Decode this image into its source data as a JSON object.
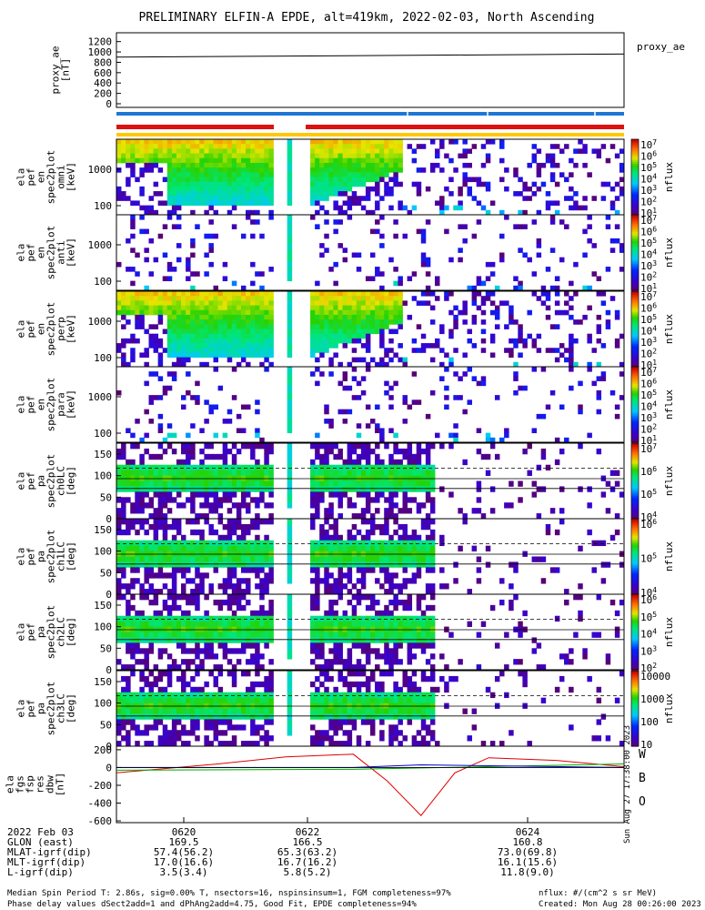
{
  "title": "PRELIMINARY ELFIN-A EPDE, alt=419km, 2022-02-03, North Ascending",
  "proxy_ae": {
    "ylabel_lines": [
      "proxy_ae",
      "[nT]"
    ],
    "yticks": [
      "1200",
      "1000",
      "800",
      "600",
      "400",
      "200",
      "0"
    ],
    "legend": "proxy_ae"
  },
  "spectrograms": [
    {
      "ylabel_lines": [
        "ela",
        "pef",
        "en",
        "spec2plot",
        "omni",
        "[keV]"
      ],
      "yticks": [
        "1000",
        "100"
      ],
      "cbar_label": "nflux",
      "cbar_ticks": [
        "10^7",
        "10^6",
        "10^5",
        "10^4",
        "10^3",
        "10^2",
        "10^1"
      ]
    },
    {
      "ylabel_lines": [
        "ela",
        "pef",
        "en",
        "spec2plot",
        "anti",
        "[keV]"
      ],
      "yticks": [
        "1000",
        "100"
      ],
      "cbar_label": "nflux",
      "cbar_ticks": [
        "10^7",
        "10^6",
        "10^5",
        "10^4",
        "10^3",
        "10^2",
        "10^1"
      ]
    },
    {
      "ylabel_lines": [
        "ela",
        "pef",
        "en",
        "spec2plot",
        "perp",
        "[keV]"
      ],
      "yticks": [
        "1000",
        "100"
      ],
      "cbar_label": "nflux",
      "cbar_ticks": [
        "10^7",
        "10^6",
        "10^5",
        "10^4",
        "10^3",
        "10^2",
        "10^1"
      ]
    },
    {
      "ylabel_lines": [
        "ela",
        "pef",
        "en",
        "spec2plot",
        "para",
        "[keV]"
      ],
      "yticks": [
        "1000",
        "100"
      ],
      "cbar_label": "nflux",
      "cbar_ticks": [
        "10^7",
        "10^6",
        "10^5",
        "10^4",
        "10^3",
        "10^2",
        "10^1"
      ]
    },
    {
      "ylabel_lines": [
        "ela",
        "pef",
        "pa",
        "spec2plot",
        "ch0LC",
        "[deg]"
      ],
      "yticks": [
        "150",
        "100",
        "50",
        "0"
      ],
      "cbar_label": "nflux",
      "cbar_ticks": [
        "10^7",
        "10^6",
        "10^5",
        "10^4"
      ]
    },
    {
      "ylabel_lines": [
        "ela",
        "pef",
        "pa",
        "spec2plot",
        "ch1LC",
        "[deg]"
      ],
      "yticks": [
        "150",
        "100",
        "50",
        "0"
      ],
      "cbar_label": "nflux",
      "cbar_ticks": [
        "10^6",
        "10^5",
        "10^4"
      ]
    },
    {
      "ylabel_lines": [
        "ela",
        "pef",
        "pa",
        "spec2plot",
        "ch2LC",
        "[deg]"
      ],
      "yticks": [
        "150",
        "100",
        "50",
        "0"
      ],
      "cbar_label": "nflux",
      "cbar_ticks": [
        "10^6",
        "10^5",
        "10^4",
        "10^3",
        "10^2"
      ]
    },
    {
      "ylabel_lines": [
        "ela",
        "pef",
        "pa",
        "spec2plot",
        "ch3LC",
        "[deg]"
      ],
      "yticks": [
        "150",
        "100",
        "50",
        "0"
      ],
      "cbar_label": "nflux",
      "cbar_ticks": [
        "10000",
        "1000",
        "100",
        "10"
      ]
    }
  ],
  "fgs": {
    "ylabel_lines": [
      "ela",
      "fgs",
      "fsp",
      "res",
      "dbw",
      "[nT]"
    ],
    "yticks": [
      "200",
      "0",
      "-200",
      "-400",
      "-600"
    ],
    "legend": [
      {
        "name": "W",
        "color": "#dd0000"
      },
      {
        "name": "B",
        "color": "#00aa00"
      },
      {
        "name": "O",
        "color": "#0000cc"
      }
    ],
    "side_stamp": "Sun Aug 27 17:38:00 2023"
  },
  "ephemeris": {
    "rows": [
      {
        "label": "2022 Feb 03",
        "values": [
          "0620",
          "0622",
          "0624"
        ]
      },
      {
        "label": "GLON (east)",
        "values": [
          "169.5",
          "166.5",
          "160.8"
        ]
      },
      {
        "label": "MLAT-igrf(dip)",
        "values": [
          "57.4(56.2)",
          "65.3(63.2)",
          "73.0(69.8)"
        ]
      },
      {
        "label": "MLT-igrf(dip)",
        "values": [
          "17.0(16.6)",
          "16.7(16.2)",
          "16.1(15.6)"
        ]
      },
      {
        "label": "L-igrf(dip)",
        "values": [
          "3.5(3.4)",
          "5.8(5.2)",
          "11.8(9.0)"
        ]
      }
    ]
  },
  "footer": {
    "line1": "Median Spin Period T: 2.86s, sig=0.00% T, nsectors=16, nspinsinsum=1, FGM completeness=97%",
    "line2": "Phase delay values dSect2add=1 and dPhAng2add=4.75, Good Fit, EPDE completeness=94%",
    "units": "nflux: #/(cm^2 s sr MeV)",
    "created": "Created: Mon Aug 28 00:26:00 2023"
  },
  "colors": {
    "spin_bar": "#1f77d4",
    "sci_bar": "#dd1111",
    "ae_bar": "#ffc800",
    "b_w": "#dd0000",
    "b_b": "#00aa00",
    "b_o": "#0000cc"
  },
  "chart_data": {
    "type": "heatmap",
    "x_ticks": [
      "0620",
      "0622",
      "0624"
    ],
    "panels": [
      "proxy_ae line (~900-960 nT)",
      "omni/anti/perp/para energy spectrograms",
      "ch0LC-ch3LC pitch-angle spectrograms",
      "fgs W/B/O residual field"
    ],
    "proxy_ae_series": {
      "name": "proxy_ae",
      "x": [
        "0618.5",
        "0626"
      ],
      "values": [
        900,
        960
      ]
    },
    "fgs_series": [
      {
        "name": "W",
        "x": [
          "0618.5",
          "0620",
          "0621",
          "0622",
          "0622.5",
          "0623",
          "0623.5",
          "0624",
          "0625",
          "0626"
        ],
        "values": [
          -60,
          40,
          120,
          150,
          -150,
          -540,
          -60,
          110,
          80,
          10
        ]
      },
      {
        "name": "B",
        "x": [
          "0618.5",
          "0622",
          "0626"
        ],
        "values": [
          -30,
          -20,
          40
        ]
      },
      {
        "name": "O",
        "x": [
          "0618.5",
          "0622",
          "0623",
          "0626"
        ],
        "values": [
          0,
          0,
          30,
          0
        ]
      }
    ],
    "ylim_energy": [
      60,
      6000
    ],
    "ylim_pa": [
      0,
      180
    ],
    "ylim_fgs": [
      -620,
      240
    ],
    "ylim_ae": [
      0,
      1300
    ],
    "grid": false,
    "legend": "right"
  }
}
